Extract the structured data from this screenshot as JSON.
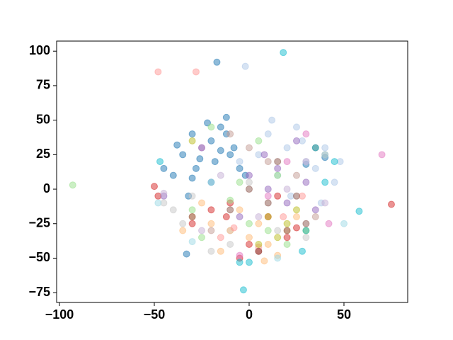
{
  "chart_data": {
    "type": "scatter",
    "xlim": [
      -101.5,
      83.6
    ],
    "ylim": [
      -82.1,
      107.3
    ],
    "xticks": [
      {
        "value": -100,
        "label": "−100"
      },
      {
        "value": -50,
        "label": "−50"
      },
      0,
      50
    ],
    "yticks": [
      {
        "value": -75,
        "label": "−75"
      },
      {
        "value": -50,
        "label": "−50"
      },
      {
        "value": -25,
        "label": "−25"
      },
      0,
      25,
      50,
      75,
      100
    ],
    "series": [
      {
        "color": "#1f77b4",
        "x": [
          -30,
          -25,
          -20,
          -15,
          -10,
          -18,
          -28,
          -35,
          -12,
          -22,
          -8,
          -40,
          -5,
          -32,
          -15,
          -17,
          -26,
          -38,
          -45,
          -20,
          -12,
          -30,
          -2,
          30,
          40,
          -33
        ],
        "values": [
          40,
          30,
          35,
          45,
          25,
          20,
          15,
          25,
          40,
          48,
          30,
          10,
          15,
          -5,
          28,
          92,
          22,
          32,
          15,
          5,
          52,
          8,
          10,
          18,
          23,
          -47
        ]
      },
      {
        "color": "#aec7e8",
        "x": [
          10,
          20,
          30,
          15,
          25,
          35,
          5,
          40,
          45,
          22,
          -2,
          12,
          28,
          -5,
          38,
          -10,
          48
        ],
        "values": [
          40,
          30,
          20,
          10,
          45,
          15,
          25,
          30,
          5,
          -5,
          89,
          50,
          35,
          20,
          -10,
          -30,
          20
        ]
      },
      {
        "color": "#ffbb78",
        "x": [
          -30,
          -20,
          -10,
          0,
          10,
          20,
          -25,
          -15,
          5,
          15,
          -35,
          -5,
          25,
          8
        ],
        "values": [
          -20,
          -25,
          -30,
          -35,
          -40,
          -30,
          -10,
          -45,
          -25,
          -48,
          -30,
          -15,
          -20,
          -52
        ]
      },
      {
        "color": "#d62728",
        "x": [
          -48,
          -10,
          0,
          10,
          20,
          -20,
          -30,
          5,
          -5,
          15,
          25,
          75,
          -50,
          -12
        ],
        "values": [
          -5,
          -10,
          -40,
          -20,
          -35,
          -15,
          -25,
          -45,
          -50,
          -5,
          -28,
          -11,
          2,
          -20
        ]
      },
      {
        "color": "#ff9896",
        "x": [
          -48,
          -28,
          -15,
          5,
          18,
          28,
          -8
        ],
        "values": [
          85,
          85,
          -35,
          -42,
          -20,
          -5,
          -28
        ]
      },
      {
        "color": "#98df8a",
        "x": [
          -93,
          -20,
          -5,
          0,
          10,
          20,
          -30,
          15,
          -10,
          -25,
          5
        ],
        "values": [
          3,
          45,
          5,
          -25,
          -30,
          -40,
          -15,
          10,
          -8,
          -35,
          35
        ]
      },
      {
        "color": "#9467bd",
        "x": [
          0,
          10,
          20,
          30,
          -5,
          15,
          25,
          -45,
          35,
          8
        ],
        "values": [
          10,
          0,
          -10,
          5,
          -20,
          15,
          35,
          -5,
          -15,
          25
        ]
      },
      {
        "color": "#c5b0d5",
        "x": [
          -45,
          -15,
          5,
          20,
          30,
          40,
          -25
        ],
        "values": [
          -3,
          10,
          -20,
          0,
          20,
          -10,
          -30
        ]
      },
      {
        "color": "#8c564b",
        "x": [
          0,
          10,
          20,
          30,
          -10,
          -30,
          15,
          25,
          35,
          5
        ],
        "values": [
          0,
          -10,
          -30,
          -25,
          -15,
          -20,
          20,
          -5,
          30,
          -45
        ]
      },
      {
        "color": "#c49c94",
        "x": [
          -20,
          10,
          25,
          40,
          -10,
          35,
          0
        ],
        "values": [
          -30,
          20,
          10,
          25,
          40,
          -20,
          30
        ]
      },
      {
        "color": "#e377c2",
        "x": [
          -25,
          10,
          30,
          70,
          -5,
          20,
          42
        ],
        "values": [
          30,
          -5,
          40,
          25,
          -48,
          20,
          -25
        ]
      },
      {
        "color": "#c7c7c7",
        "x": [
          -40,
          -35,
          -30,
          -45,
          -20,
          -10,
          0,
          15,
          30
        ],
        "values": [
          -15,
          -25,
          -5,
          -10,
          -45,
          -40,
          5,
          -30,
          -35
        ]
      },
      {
        "color": "#bcbd22",
        "x": [
          10,
          20,
          25,
          15,
          30,
          -30,
          5
        ],
        "values": [
          -20,
          -25,
          -15,
          -35,
          -30,
          35,
          -40
        ]
      },
      {
        "color": "#17becf",
        "x": [
          18,
          -3,
          58,
          35,
          30,
          0,
          -5,
          -47,
          28,
          40,
          45
        ],
        "values": [
          99,
          -73,
          -16,
          30,
          -30,
          -53,
          -53,
          20,
          -45,
          5,
          20
        ]
      },
      {
        "color": "#9edae5",
        "x": [
          -30,
          40,
          50,
          -48,
          15,
          -20
        ],
        "values": [
          -38,
          25,
          -25,
          -10,
          -50,
          5
        ]
      }
    ]
  }
}
